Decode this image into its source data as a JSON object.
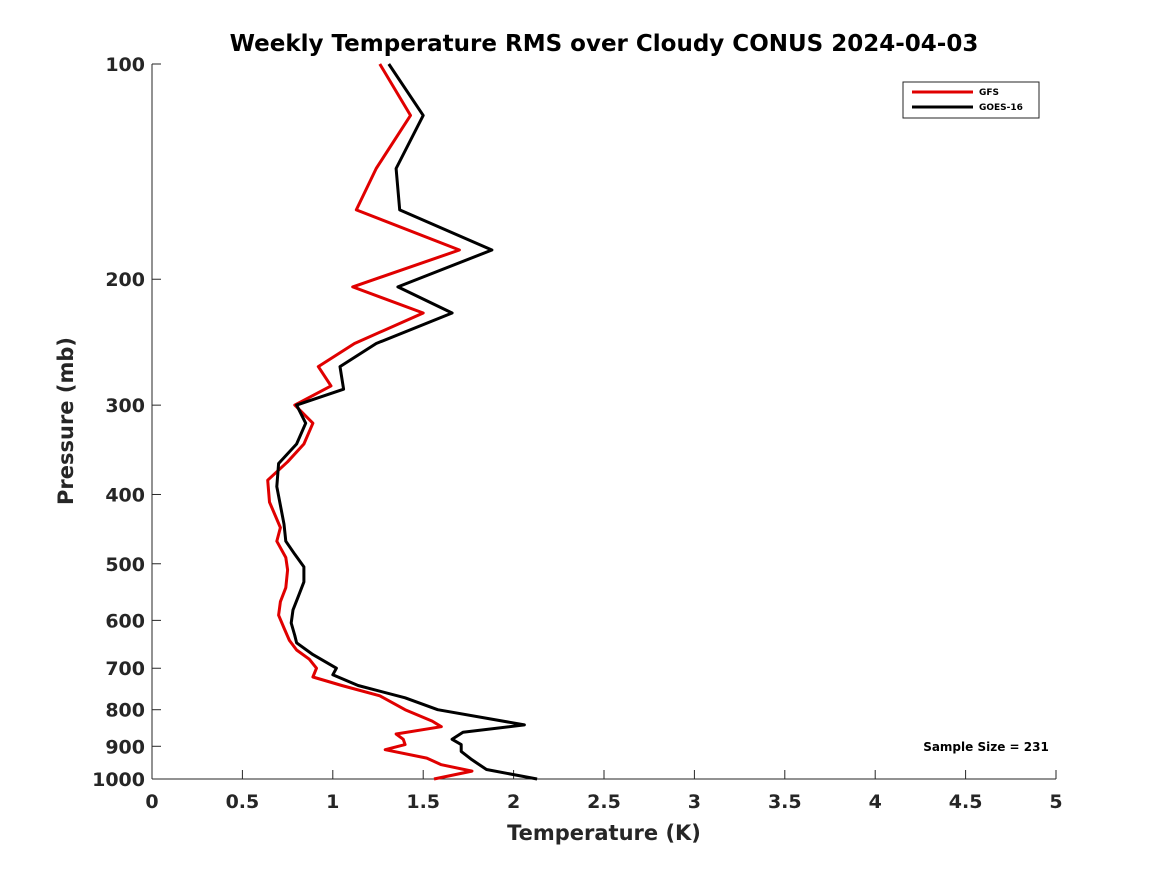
{
  "chart_data": {
    "type": "line",
    "title": "Weekly Temperature RMS over Cloudy CONUS 2024-04-03",
    "xlabel": "Temperature (K)",
    "ylabel": "Pressure (mb)",
    "xlim": [
      0,
      5
    ],
    "ylim": [
      100,
      1000
    ],
    "yscale": "log",
    "y_reversed": true,
    "grid": false,
    "legend_position": "top-right",
    "x_ticks": [
      0,
      0.5,
      1,
      1.5,
      2,
      2.5,
      3,
      3.5,
      4,
      4.5,
      5
    ],
    "x_tick_labels": [
      "0",
      "0.5",
      "1",
      "1.5",
      "2",
      "2.5",
      "3",
      "3.5",
      "4",
      "4.5",
      "5"
    ],
    "y_ticks": [
      100,
      200,
      300,
      400,
      500,
      600,
      700,
      800,
      900,
      1000
    ],
    "y_tick_labels": [
      "100",
      "200",
      "300",
      "400",
      "500",
      "600",
      "700",
      "800",
      "900",
      "1000"
    ],
    "annotation": "Sample Size = 231",
    "series": [
      {
        "name": "GFS",
        "color": "#e00000",
        "points": [
          [
            1.26,
            100
          ],
          [
            1.43,
            118
          ],
          [
            1.24,
            140
          ],
          [
            1.13,
            160
          ],
          [
            1.7,
            182
          ],
          [
            1.11,
            205
          ],
          [
            1.5,
            223
          ],
          [
            1.12,
            246
          ],
          [
            0.92,
            265
          ],
          [
            0.99,
            282
          ],
          [
            0.79,
            300
          ],
          [
            0.89,
            318
          ],
          [
            0.84,
            340
          ],
          [
            0.75,
            360
          ],
          [
            0.64,
            382
          ],
          [
            0.65,
            410
          ],
          [
            0.71,
            445
          ],
          [
            0.69,
            465
          ],
          [
            0.74,
            490
          ],
          [
            0.75,
            510
          ],
          [
            0.74,
            540
          ],
          [
            0.71,
            565
          ],
          [
            0.7,
            590
          ],
          [
            0.73,
            615
          ],
          [
            0.76,
            640
          ],
          [
            0.8,
            660
          ],
          [
            0.87,
            680
          ],
          [
            0.91,
            700
          ],
          [
            0.89,
            720
          ],
          [
            1.05,
            740
          ],
          [
            1.26,
            765
          ],
          [
            1.4,
            800
          ],
          [
            1.55,
            830
          ],
          [
            1.6,
            845
          ],
          [
            1.35,
            865
          ],
          [
            1.39,
            880
          ],
          [
            1.4,
            895
          ],
          [
            1.29,
            910
          ],
          [
            1.52,
            935
          ],
          [
            1.6,
            955
          ],
          [
            1.77,
            975
          ],
          [
            1.56,
            1000
          ]
        ]
      },
      {
        "name": "GOES-16",
        "color": "#000000",
        "points": [
          [
            1.31,
            100
          ],
          [
            1.5,
            118
          ],
          [
            1.35,
            140
          ],
          [
            1.37,
            160
          ],
          [
            1.88,
            182
          ],
          [
            1.36,
            205
          ],
          [
            1.66,
            223
          ],
          [
            1.24,
            246
          ],
          [
            1.04,
            265
          ],
          [
            1.06,
            285
          ],
          [
            0.8,
            300
          ],
          [
            0.85,
            318
          ],
          [
            0.8,
            340
          ],
          [
            0.7,
            362
          ],
          [
            0.69,
            390
          ],
          [
            0.73,
            440
          ],
          [
            0.74,
            465
          ],
          [
            0.79,
            485
          ],
          [
            0.84,
            505
          ],
          [
            0.84,
            530
          ],
          [
            0.81,
            555
          ],
          [
            0.78,
            580
          ],
          [
            0.77,
            605
          ],
          [
            0.79,
            630
          ],
          [
            0.8,
            645
          ],
          [
            0.89,
            670
          ],
          [
            1.02,
            700
          ],
          [
            1.0,
            715
          ],
          [
            1.14,
            740
          ],
          [
            1.4,
            770
          ],
          [
            1.58,
            800
          ],
          [
            2.06,
            840
          ],
          [
            1.72,
            860
          ],
          [
            1.66,
            880
          ],
          [
            1.71,
            895
          ],
          [
            1.71,
            915
          ],
          [
            1.77,
            940
          ],
          [
            1.85,
            970
          ],
          [
            2.13,
            1000
          ]
        ]
      }
    ]
  }
}
